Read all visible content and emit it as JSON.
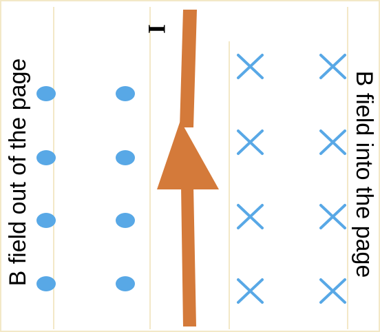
{
  "diagram": {
    "left_label": "B field out of the page",
    "right_label": "B field into the page",
    "current_label": "I",
    "colors": {
      "background": "#ffffff",
      "frame": "#f3e8c7",
      "field_marker": "#58a8e6",
      "wire": "#d47a3a",
      "text": "#000000"
    },
    "icons": {
      "out_of_page": "dot-icon",
      "into_page": "cross-icon",
      "current_direction": "arrow-up-icon"
    }
  }
}
